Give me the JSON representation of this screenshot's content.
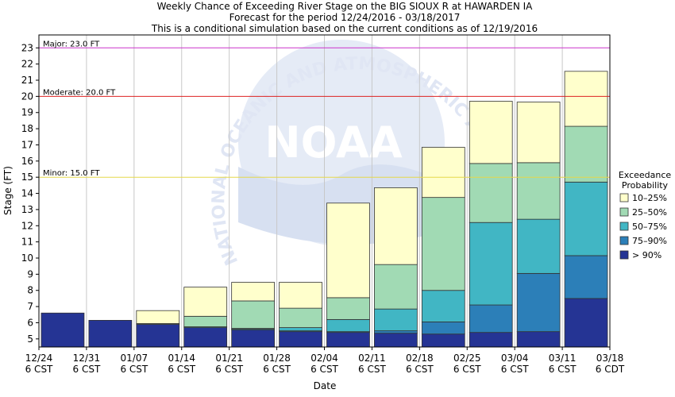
{
  "chart_data": {
    "type": "bar",
    "title_lines": [
      "Weekly Chance of Exceeding River Stage on the BIG SIOUX R at HAWARDEN IA",
      "Forecast for the period 12/24/2016 - 03/18/2017",
      "This is a conditional simulation based on the current conditions as of 12/19/2016"
    ],
    "xlabel": "Date",
    "ylabel": "Stage (FT)",
    "ylim": [
      4.5,
      23.8
    ],
    "yticks": [
      5,
      6,
      7,
      8,
      9,
      10,
      11,
      12,
      13,
      14,
      15,
      16,
      17,
      18,
      19,
      20,
      21,
      22,
      23
    ],
    "grid": "vertical",
    "x_ticks": [
      {
        "date": "12/24",
        "tz": "6 CST"
      },
      {
        "date": "12/31",
        "tz": "6 CST"
      },
      {
        "date": "01/07",
        "tz": "6 CST"
      },
      {
        "date": "01/14",
        "tz": "6 CST"
      },
      {
        "date": "01/21",
        "tz": "6 CST"
      },
      {
        "date": "01/28",
        "tz": "6 CST"
      },
      {
        "date": "02/04",
        "tz": "6 CST"
      },
      {
        "date": "02/11",
        "tz": "6 CST"
      },
      {
        "date": "02/18",
        "tz": "6 CST"
      },
      {
        "date": "02/25",
        "tz": "6 CST"
      },
      {
        "date": "03/04",
        "tz": "6 CST"
      },
      {
        "date": "03/11",
        "tz": "6 CST"
      },
      {
        "date": "03/18",
        "tz": "6 CDT"
      }
    ],
    "thresholds": [
      {
        "label": "Major: 23.0 FT",
        "value": 23.0,
        "color": "#cc33cc"
      },
      {
        "label": "Moderate: 20.0 FT",
        "value": 20.0,
        "color": "#dd2222"
      },
      {
        "label": "Minor: 15.0 FT",
        "value": 15.0,
        "color": "#e6d84a"
      }
    ],
    "legend": {
      "title_lines": [
        "Exceedance",
        "Probability"
      ],
      "placement": "right",
      "entries": [
        {
          "label": "10–25%",
          "color": "#ffffcc"
        },
        {
          "label": "25–50%",
          "color": "#a1dab4"
        },
        {
          "label": "50–75%",
          "color": "#41b6c4"
        },
        {
          "label": "75–90%",
          "color": "#2c7fb8"
        },
        {
          "label": "> 90%",
          "color": "#253494"
        }
      ]
    },
    "bars": [
      {
        "week": "12/24",
        "exceedance_levels_ft": [
          6.6,
          6.6,
          6.6,
          6.6,
          6.6
        ]
      },
      {
        "week": "12/31",
        "exceedance_levels_ft": [
          6.15,
          6.15,
          6.15,
          6.15,
          6.15
        ]
      },
      {
        "week": "01/07",
        "exceedance_levels_ft": [
          5.9,
          5.9,
          5.9,
          5.95,
          6.75
        ]
      },
      {
        "week": "01/14",
        "exceedance_levels_ft": [
          5.7,
          5.7,
          5.75,
          6.4,
          8.2
        ]
      },
      {
        "week": "01/21",
        "exceedance_levels_ft": [
          5.55,
          5.6,
          5.65,
          7.35,
          8.5
        ]
      },
      {
        "week": "01/28",
        "exceedance_levels_ft": [
          5.45,
          5.5,
          5.7,
          6.9,
          8.5
        ]
      },
      {
        "week": "02/04",
        "exceedance_levels_ft": [
          5.4,
          5.45,
          6.2,
          7.55,
          13.4
        ]
      },
      {
        "week": "02/11",
        "exceedance_levels_ft": [
          5.35,
          5.5,
          6.85,
          9.6,
          14.35
        ]
      },
      {
        "week": "02/18",
        "exceedance_levels_ft": [
          5.3,
          6.05,
          8.0,
          13.75,
          16.85
        ]
      },
      {
        "week": "02/25",
        "exceedance_levels_ft": [
          5.4,
          7.1,
          12.2,
          15.85,
          19.7
        ]
      },
      {
        "week": "03/04",
        "exceedance_levels_ft": [
          5.45,
          9.05,
          12.4,
          15.9,
          19.65
        ]
      },
      {
        "week": "03/11",
        "exceedance_levels_ft": [
          7.5,
          10.15,
          14.7,
          18.15,
          21.55
        ]
      }
    ],
    "level_order": "> 90%, 75–90%, 50–75%, 25–50%, 10–25% (top of each band, FT)"
  },
  "watermark": {
    "ring_text": "NATIONAL OCEANIC AND ATMOSPHERIC ADMINISTRATION",
    "center_text": "NOAA"
  }
}
